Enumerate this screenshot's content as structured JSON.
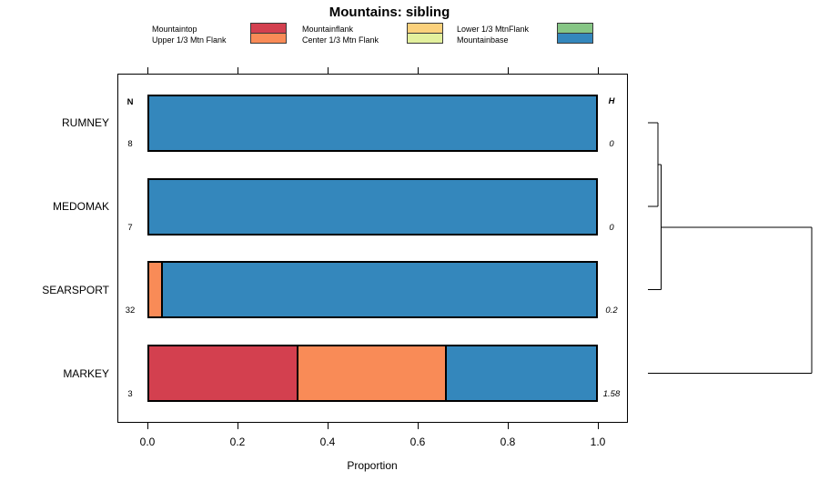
{
  "title": "Mountains: sibling",
  "legend": {
    "items": [
      {
        "label": "Mountaintop",
        "color": "#D3404F"
      },
      {
        "label": "Upper 1/3 Mtn Flank",
        "color": "#F98B57"
      },
      {
        "label": "Mountainflank",
        "color": "#FBD17C"
      },
      {
        "label": "Center 1/3 Mtn Flank",
        "color": "#E3F09D"
      },
      {
        "label": "Lower 1/3 MtnFlank",
        "color": "#86C685"
      },
      {
        "label": "Mountainbase",
        "color": "#3487BC"
      }
    ]
  },
  "chart_data": {
    "type": "bar",
    "orientation": "horizontal",
    "stacked": true,
    "title": "Mountains: sibling",
    "xlabel": "Proportion",
    "xlim": [
      0,
      1
    ],
    "x_ticks": [
      0.0,
      0.2,
      0.4,
      0.6,
      0.8,
      1.0
    ],
    "x_tick_labels": [
      "0.0",
      "0.2",
      "0.4",
      "0.6",
      "0.8",
      "1.0"
    ],
    "grid": false,
    "legend_position": "top",
    "n_header": "N",
    "h_header": "H",
    "categories": [
      "RUMNEY",
      "MEDOMAK",
      "SEARSPORT",
      "MARKEY"
    ],
    "rows": [
      {
        "category": "RUMNEY",
        "n": "8",
        "h": "0",
        "segments": [
          {
            "class": "Mountainbase",
            "color": "#3487BC",
            "value": 1.0
          }
        ]
      },
      {
        "category": "MEDOMAK",
        "n": "7",
        "h": "0",
        "segments": [
          {
            "class": "Mountainbase",
            "color": "#3487BC",
            "value": 1.0
          }
        ]
      },
      {
        "category": "SEARSPORT",
        "n": "32",
        "h": "0.2",
        "segments": [
          {
            "class": "Upper 1/3 Mtn Flank",
            "color": "#F98B57",
            "value": 0.031
          },
          {
            "class": "Mountainbase",
            "color": "#3487BC",
            "value": 0.969
          }
        ]
      },
      {
        "category": "MARKEY",
        "n": "3",
        "h": "1.58",
        "segments": [
          {
            "class": "Mountaintop",
            "color": "#D3404F",
            "value": 0.333
          },
          {
            "class": "Upper 1/3 Mtn Flank",
            "color": "#F98B57",
            "value": 0.334
          },
          {
            "class": "Mountainbase",
            "color": "#3487BC",
            "value": 0.333
          }
        ]
      }
    ],
    "dendrogram": {
      "joins": [
        {
          "a": 0,
          "b": 1,
          "height": 0.06
        },
        {
          "a": "j0",
          "b": 2,
          "height": 0.08
        },
        {
          "a": "j1",
          "b": 3,
          "height": 1.0
        }
      ]
    }
  }
}
